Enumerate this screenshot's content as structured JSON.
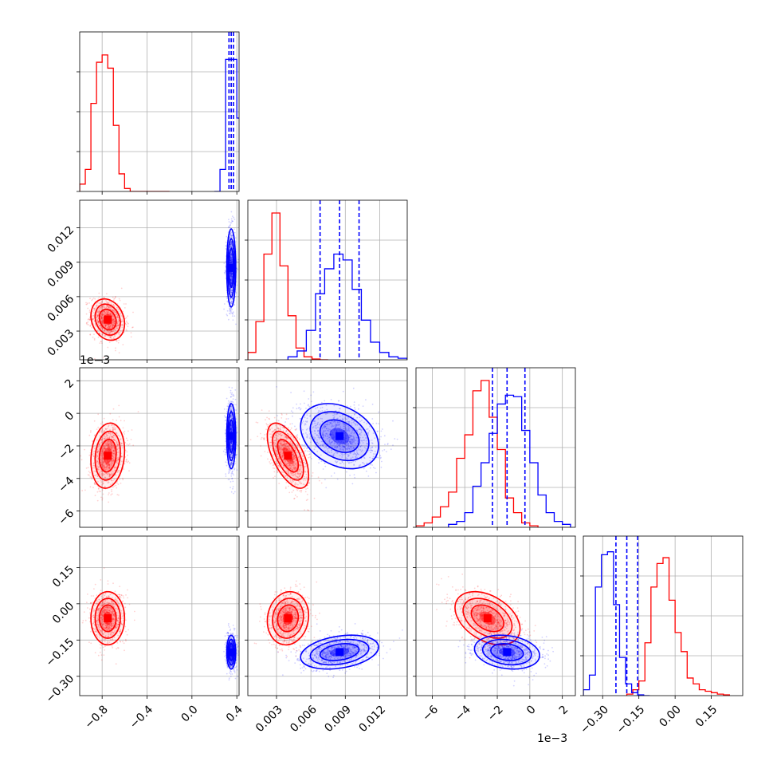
{
  "figure": {
    "background": "#ffffff",
    "colors": {
      "red": "#ff0000",
      "blue": "#0000ff",
      "grid": "#b0b0b0"
    },
    "offset_texts": [
      {
        "id": "row1-offset",
        "text": "1e−3"
      },
      {
        "id": "col2-offset",
        "text": "1e−3"
      }
    ]
  },
  "chart_data": {
    "type": "corner",
    "grid": true,
    "parameters": [
      {
        "ticks": [
          -0.8,
          -0.4,
          0.0,
          0.4
        ],
        "tick_labels": [
          "−0.8",
          "−0.4",
          "0.0",
          "0.4"
        ],
        "range": [
          -1.0,
          0.42
        ]
      },
      {
        "ticks": [
          0.003,
          0.006,
          0.009,
          0.012
        ],
        "tick_labels": [
          "0.003",
          "0.006",
          "0.009",
          "0.012"
        ],
        "range": [
          0.0005,
          0.0144
        ]
      },
      {
        "ticks": [
          -6,
          -4,
          -2,
          0,
          2
        ],
        "tick_labels": [
          "−6",
          "−4",
          "−2",
          "0",
          "2"
        ],
        "range": [
          -7.0,
          2.8
        ]
      },
      {
        "ticks": [
          -0.3,
          -0.15,
          0.0,
          0.15
        ],
        "tick_labels": [
          "−0.30",
          "−0.15",
          "0.00",
          "0.15"
        ],
        "range": [
          -0.38,
          0.28
        ]
      }
    ],
    "series": [
      {
        "color": "#ff0000",
        "histograms": [
          {
            "edges": [
              -1.0,
              -0.95,
              -0.9,
              -0.85,
              -0.8,
              -0.75,
              -0.7,
              -0.65,
              -0.6,
              -0.55,
              -0.5,
              -0.45,
              -0.4,
              -0.35,
              -0.3,
              -0.25,
              -0.2
            ],
            "counts": [
              0.05,
              0.15,
              0.6,
              0.88,
              0.93,
              0.84,
              0.45,
              0.12,
              0.02,
              0,
              0,
              0,
              0,
              0,
              0,
              0
            ]
          },
          {
            "edges": [
              0.0005,
              0.0012,
              0.0019,
              0.0026,
              0.0033,
              0.004,
              0.0047,
              0.0054,
              0.0061,
              0.0068,
              0.0075
            ],
            "counts": [
              0.05,
              0.26,
              0.72,
              1.0,
              0.64,
              0.3,
              0.08,
              0.02,
              0.005,
              0
            ]
          },
          {
            "edges": [
              -7.0,
              -6.5,
              -6.0,
              -5.5,
              -5.0,
              -4.5,
              -4.0,
              -3.5,
              -3.0,
              -2.5,
              -2.0,
              -1.5,
              -1.0,
              -0.5,
              0.0,
              0.5
            ],
            "counts": [
              0.01,
              0.03,
              0.07,
              0.14,
              0.24,
              0.47,
              0.63,
              0.93,
              1.0,
              0.75,
              0.53,
              0.2,
              0.1,
              0.03,
              0.01
            ]
          },
          {
            "edges": [
              -0.2,
              -0.175,
              -0.15,
              -0.125,
              -0.1,
              -0.075,
              -0.05,
              -0.025,
              0.0,
              0.025,
              0.05,
              0.075,
              0.1,
              0.125,
              0.15,
              0.175,
              0.2,
              0.225
            ],
            "counts": [
              0.01,
              0.04,
              0.1,
              0.36,
              0.74,
              0.9,
              0.94,
              0.65,
              0.43,
              0.3,
              0.12,
              0.08,
              0.04,
              0.03,
              0.02,
              0.01,
              0.005
            ]
          }
        ],
        "means": [
          -0.75,
          0.004,
          -2.6,
          -0.06
        ],
        "sigmas": [
          0.075,
          0.0009,
          1.0,
          0.055
        ],
        "correlations": [
          [
            1,
            -0.2,
            0.15,
            0.0
          ],
          [
            -0.2,
            1,
            -0.6,
            0.1
          ],
          [
            0.15,
            -0.6,
            1,
            -0.4
          ],
          [
            0.0,
            0.1,
            -0.4,
            1
          ]
        ]
      },
      {
        "color": "#0000ff",
        "histograms": [
          {
            "edges": [
              0.2,
              0.25,
              0.3,
              0.35,
              0.4,
              0.45
            ],
            "counts": [
              0.0,
              0.15,
              0.9,
              0.9,
              0.5
            ]
          },
          {
            "edges": [
              0.004,
              0.0048,
              0.0056,
              0.0064,
              0.0072,
              0.008,
              0.0088,
              0.0096,
              0.0104,
              0.0112,
              0.012,
              0.0128,
              0.0136,
              0.0144
            ],
            "counts": [
              0.02,
              0.06,
              0.2,
              0.45,
              0.62,
              0.72,
              0.68,
              0.48,
              0.27,
              0.12,
              0.05,
              0.02,
              0.01
            ]
          },
          {
            "edges": [
              -5.0,
              -4.5,
              -4.0,
              -3.5,
              -3.0,
              -2.5,
              -2.0,
              -1.5,
              -1.0,
              -0.5,
              0.0,
              0.5,
              1.0,
              1.5,
              2.0,
              2.5
            ],
            "counts": [
              0.02,
              0.04,
              0.1,
              0.28,
              0.44,
              0.64,
              0.84,
              0.9,
              0.89,
              0.66,
              0.44,
              0.22,
              0.1,
              0.04,
              0.02
            ]
          },
          {
            "edges": [
              -0.38,
              -0.355,
              -0.33,
              -0.305,
              -0.28,
              -0.255,
              -0.23,
              -0.205,
              -0.18,
              -0.155,
              -0.13,
              -0.105
            ],
            "counts": [
              0.04,
              0.14,
              0.74,
              0.96,
              0.98,
              0.62,
              0.26,
              0.08,
              0.02,
              0.005,
              0
            ]
          }
        ],
        "quantile_lines": [
          [
            0.33,
            0.35,
            0.37
          ],
          [
            0.0068,
            0.0085,
            0.0102
          ],
          [
            -2.3,
            -1.4,
            -0.3
          ],
          [
            -0.245,
            -0.2,
            -0.155
          ]
        ],
        "means": [
          0.35,
          0.0085,
          -1.4,
          -0.2
        ],
        "sigmas": [
          0.02,
          0.0017,
          1.0,
          0.035
        ],
        "correlations": [
          [
            1,
            0.0,
            0.0,
            0.0
          ],
          [
            0.0,
            1,
            -0.3,
            0.3
          ],
          [
            0.0,
            -0.3,
            1,
            -0.2
          ],
          [
            0.0,
            0.3,
            -0.2,
            1
          ]
        ]
      }
    ]
  }
}
